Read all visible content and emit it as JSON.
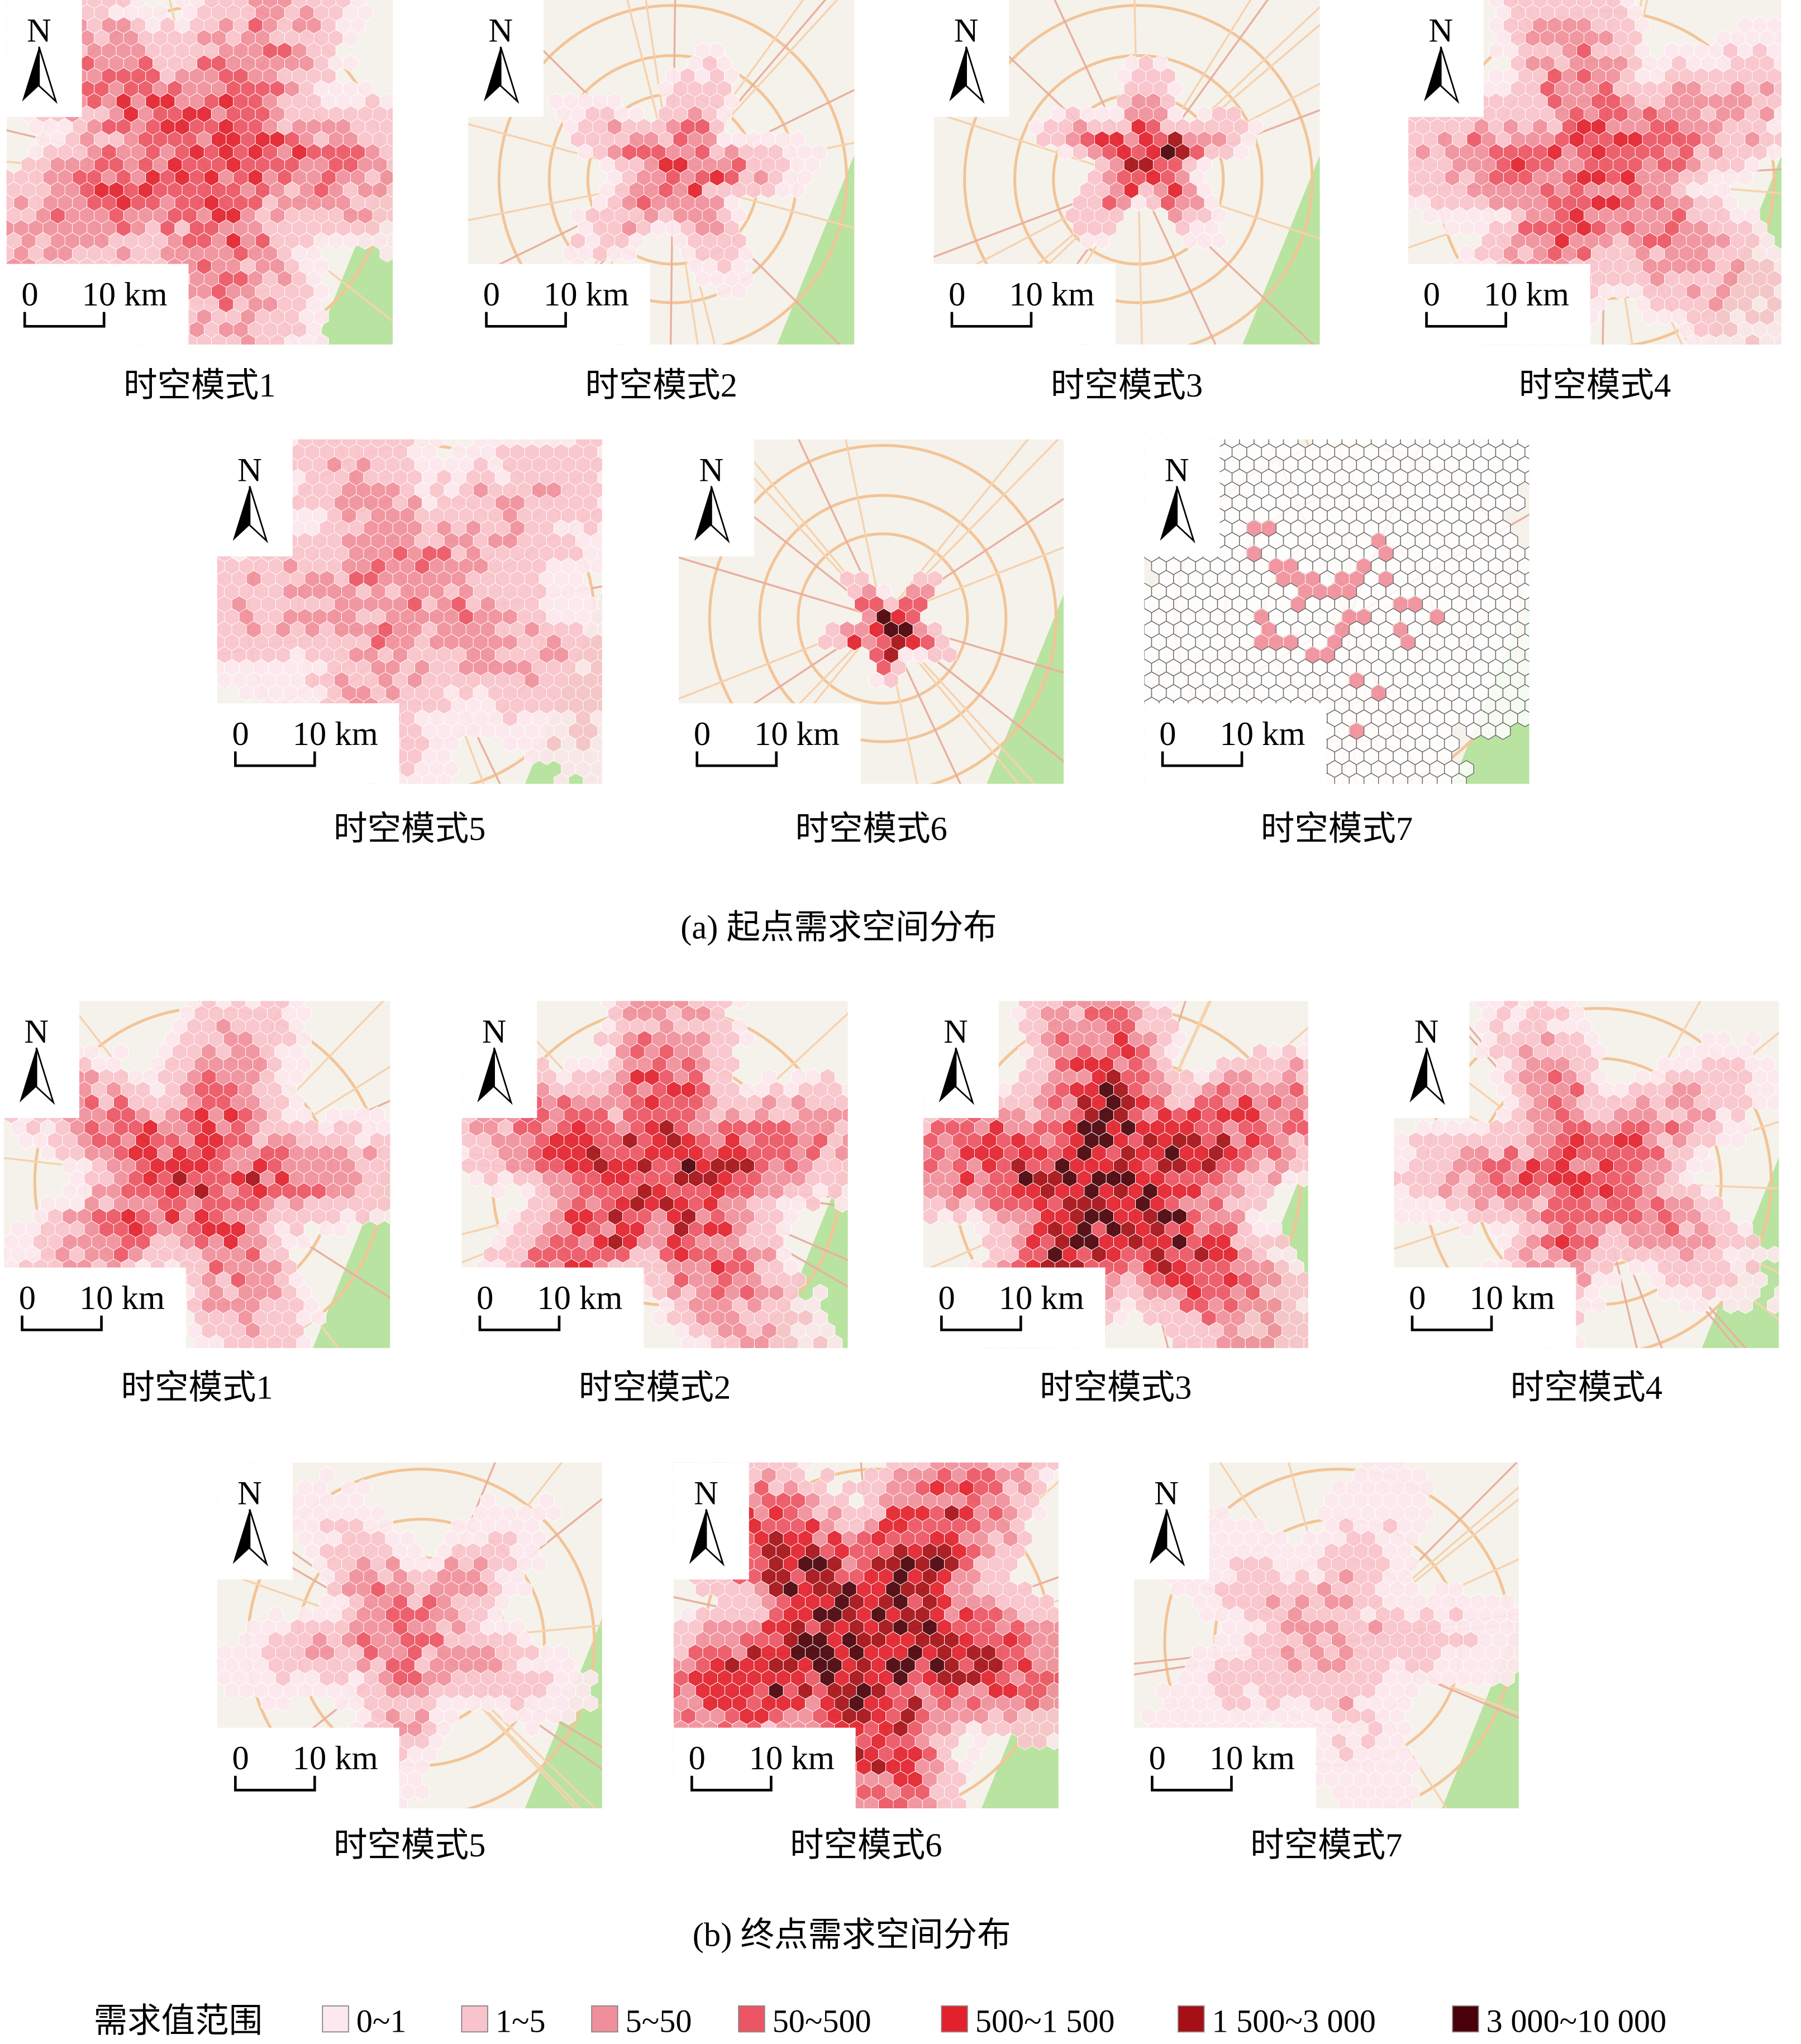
{
  "panels": [
    {
      "caption": "(a) 起点需求空间分布",
      "maps": [
        {
          "label": "时空模式1"
        },
        {
          "label": "时空模式2"
        },
        {
          "label": "时空模式3"
        },
        {
          "label": "时空模式4"
        },
        {
          "label": "时空模式5"
        },
        {
          "label": "时空模式6"
        },
        {
          "label": "时空模式7"
        }
      ]
    },
    {
      "caption": "(b) 终点需求空间分布",
      "maps": [
        {
          "label": "时空模式1"
        },
        {
          "label": "时空模式2"
        },
        {
          "label": "时空模式3"
        },
        {
          "label": "时空模式4"
        },
        {
          "label": "时空模式5"
        },
        {
          "label": "时空模式6"
        },
        {
          "label": "时空模式7"
        }
      ]
    }
  ],
  "map_text": {
    "north": "N",
    "scale_zero": "0",
    "scale_label": "10 km"
  },
  "legend": {
    "title": "需求值范围",
    "items": [
      {
        "label": "0~1",
        "color": "#fce8ed"
      },
      {
        "label": "1~5",
        "color": "#f8c3cb"
      },
      {
        "label": "5~50",
        "color": "#f08f9b"
      },
      {
        "label": "50~500",
        "color": "#ec5563"
      },
      {
        "label": "500~1 500",
        "color": "#e2212d"
      },
      {
        "label": "1 500~3 000",
        "color": "#a50f15"
      },
      {
        "label": "3 000~10 000",
        "color": "#4a0008"
      }
    ]
  }
}
